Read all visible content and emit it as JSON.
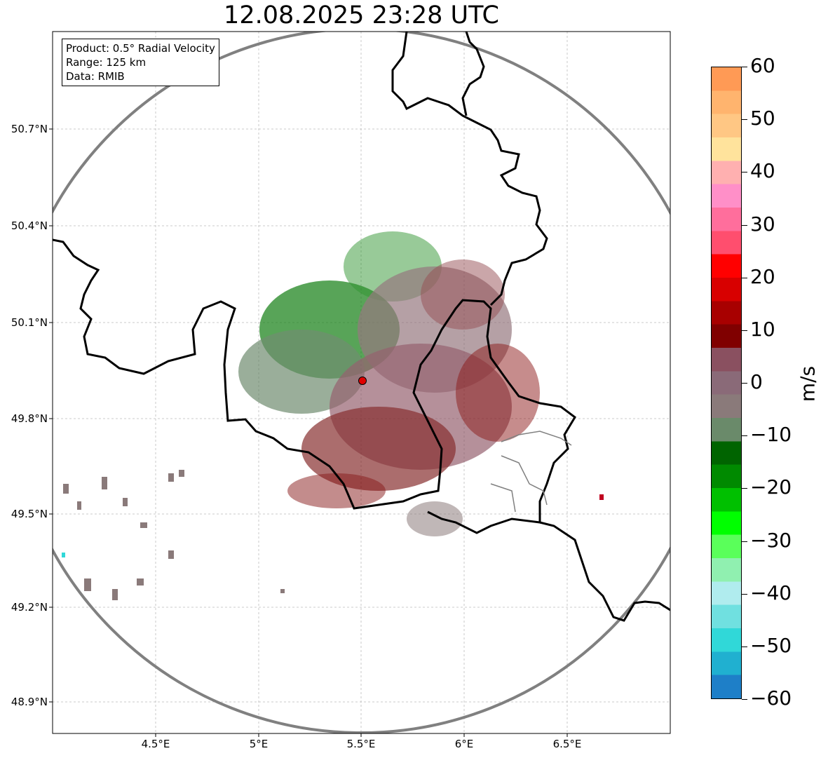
{
  "title": "12.08.2025 23:28 UTC",
  "info": {
    "product": "Product: 0.5° Radial Velocity",
    "range": "Range: 125 km",
    "source": "Data: RMIB"
  },
  "lat_labels": [
    "50.7°N",
    "50.4°N",
    "50.1°N",
    "49.8°N",
    "49.5°N",
    "49.2°N",
    "48.9°N"
  ],
  "lon_labels": [
    "4.5°E",
    "5°E",
    "5.5°E",
    "6°E",
    "6.5°E"
  ],
  "colorbar": {
    "unit": "m/s",
    "tick_labels": [
      "60",
      "50",
      "40",
      "30",
      "20",
      "10",
      "0",
      "−10",
      "−20",
      "−30",
      "−40",
      "−50",
      "−60"
    ],
    "range": [
      -60,
      60
    ],
    "colors_top_to_bottom": [
      "#ff9a55",
      "#ffb46e",
      "#ffc784",
      "#ffe39c",
      "#ffb0b0",
      "#ff8fc8",
      "#ff6e9c",
      "#ff4e6e",
      "#ff0000",
      "#d80000",
      "#a80000",
      "#800000",
      "#8a5060",
      "#8a6a78",
      "#8a7a7a",
      "#6a8a6a",
      "#006400",
      "#008a00",
      "#00c000",
      "#00ff00",
      "#5aff5a",
      "#90f0b0",
      "#b0ecee",
      "#70e0e0",
      "#30d8d8",
      "#20b0d0",
      "#1e7fc8"
    ]
  },
  "map_elements": {
    "radar_site": "radar-site-marker",
    "range_ring": "125-km-range-ring"
  }
}
